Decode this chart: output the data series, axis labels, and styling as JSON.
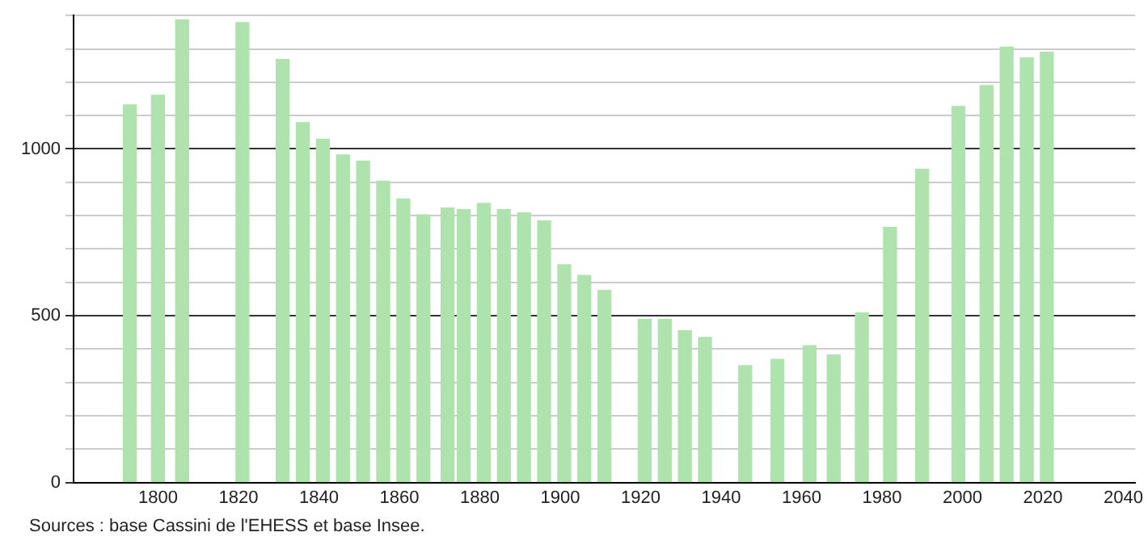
{
  "chart_data": {
    "type": "bar",
    "x": [
      1793,
      1800,
      1806,
      1821,
      1831,
      1836,
      1841,
      1846,
      1851,
      1856,
      1861,
      1866,
      1872,
      1876,
      1881,
      1886,
      1891,
      1896,
      1901,
      1906,
      1911,
      1921,
      1926,
      1931,
      1936,
      1946,
      1954,
      1962,
      1968,
      1975,
      1982,
      1990,
      1999,
      2006,
      2011,
      2016,
      2021
    ],
    "values": [
      1132,
      1161,
      1387,
      1379,
      1268,
      1079,
      1029,
      982,
      963,
      903,
      850,
      802,
      823,
      818,
      837,
      818,
      808,
      784,
      653,
      621,
      576,
      489,
      489,
      455,
      435,
      350,
      369,
      410,
      382,
      508,
      765,
      939,
      1127,
      1190,
      1305,
      1273,
      1290
    ],
    "color": "#aee3ae",
    "xlim": [
      1779,
      2043
    ],
    "xticks": [
      1800,
      1820,
      1840,
      1860,
      1880,
      1900,
      1920,
      1940,
      1960,
      1980,
      2000,
      2020,
      2040
    ],
    "ylim": [
      0,
      1400
    ],
    "yticks": [
      0,
      {
        "value": 100,
        "label": null
      },
      {
        "value": 200,
        "label": null
      },
      {
        "value": 300,
        "label": null
      },
      {
        "value": 400,
        "label": null
      },
      500,
      {
        "value": 600,
        "label": null
      },
      {
        "value": 700,
        "label": null
      },
      {
        "value": 800,
        "label": null
      },
      {
        "value": 900,
        "label": null
      },
      1000,
      {
        "value": 1100,
        "label": null
      },
      {
        "value": 1200,
        "label": null
      },
      {
        "value": 1300,
        "label": null
      },
      {
        "value": 1400,
        "label": null
      }
    ],
    "grid": "y",
    "legend": false,
    "annotations": [
      "Sources : base Cassini de l'EHESS et base Insee."
    ]
  }
}
